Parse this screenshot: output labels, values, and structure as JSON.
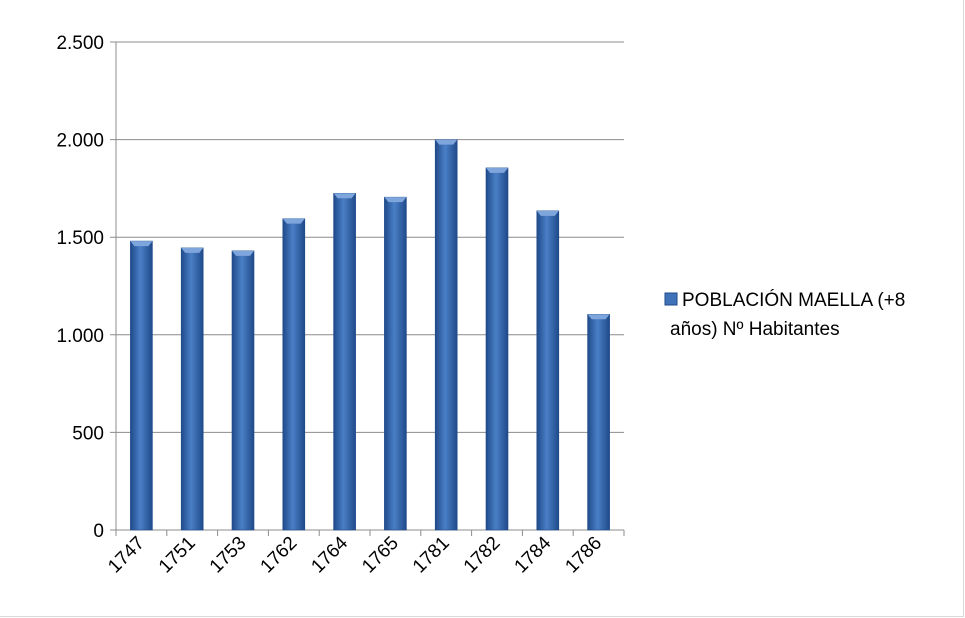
{
  "chart_data": {
    "type": "bar",
    "categories": [
      "1747",
      "1751",
      "1753",
      "1762",
      "1764",
      "1765",
      "1781",
      "1782",
      "1784",
      "1786"
    ],
    "series": [
      {
        "name": "POBLACIÓN MAELLA (+8 años) Nº Habitantes",
        "values": [
          1480,
          1445,
          1430,
          1595,
          1725,
          1705,
          2000,
          1855,
          1635,
          1105
        ]
      }
    ],
    "ylim": [
      0,
      2500
    ],
    "yticks": [
      0,
      500,
      1000,
      1500,
      2000,
      2500
    ],
    "ytick_labels": [
      "0",
      "500",
      "1.000",
      "1.500",
      "2.000",
      "2.500"
    ],
    "title": "",
    "xlabel": "",
    "ylabel": "",
    "grid": true,
    "legend_position": "right",
    "legend_lines": [
      "POBLACIÓN MAELLA (+8",
      "años) Nº Habitantes"
    ],
    "colors": {
      "bar_main": "#3f72b8",
      "bar_dark": "#1f4a8a",
      "bar_light": "#7fa6dc",
      "grid": "#8c8c8c"
    }
  }
}
